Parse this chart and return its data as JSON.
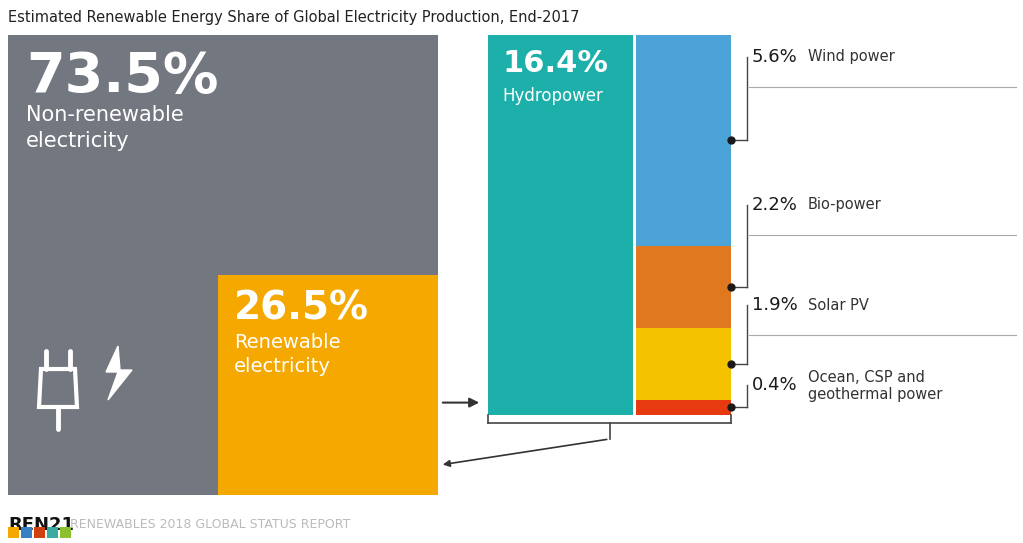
{
  "title": "Estimated Renewable Energy Share of Global Electricity Production, End-2017",
  "title_fontsize": 10.5,
  "background_color": "#ffffff",
  "non_renewable_pct": "73.5%",
  "non_renewable_label": "Non-renewable\nelectricity",
  "non_renewable_color": "#737780",
  "renewable_pct": "26.5%",
  "renewable_label": "Renewable\nelectricity",
  "renewable_color": "#F5A800",
  "hydro_pct": "16.4%",
  "hydro_label": "Hydropower",
  "hydro_color": "#1DAFAA",
  "breakdown": [
    {
      "pct": 5.6,
      "label": "5.6%",
      "name": "Wind power",
      "color": "#4CA3D8"
    },
    {
      "pct": 2.2,
      "label": "2.2%",
      "name": "Bio-power",
      "color": "#E07820"
    },
    {
      "pct": 1.9,
      "label": "1.9%",
      "name": "Solar PV",
      "color": "#F5C200"
    },
    {
      "pct": 0.4,
      "label": "0.4%",
      "name": "Ocean, CSP and\ngeothermal power",
      "color": "#E83A10"
    }
  ],
  "footer_bold": "REN21",
  "footer_light": "RENEWABLES 2018 GLOBAL STATUS REPORT",
  "ren21_icon_colors": [
    "#F5A800",
    "#3A7FC1",
    "#D04010",
    "#3AABA0",
    "#8DC030"
  ]
}
